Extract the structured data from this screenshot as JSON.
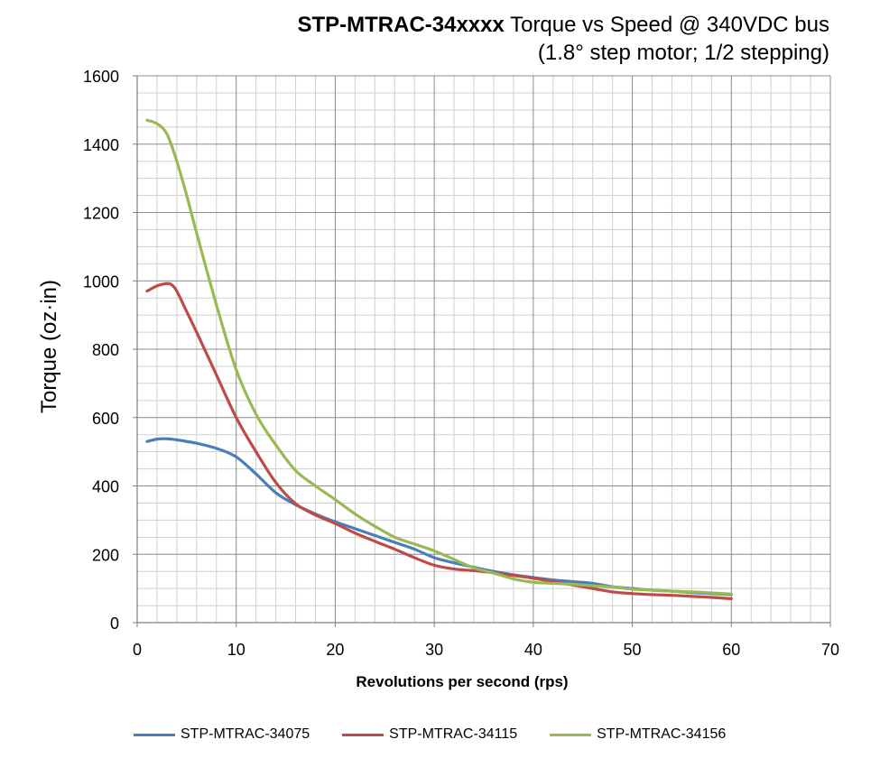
{
  "chart_data": {
    "type": "line",
    "title_bold": "STP-MTRAC-34xxxx",
    "title_rest": " Torque vs Speed @ 340VDC bus",
    "subtitle": "(1.8° step motor; 1/2 stepping)",
    "xlabel": "Revolutions per second (rps)",
    "ylabel": "Torque (oz·in)",
    "xlim": [
      0,
      70
    ],
    "ylim": [
      0,
      1600
    ],
    "x_major_ticks": [
      0,
      10,
      20,
      30,
      40,
      50,
      60,
      70
    ],
    "y_major_ticks": [
      0,
      200,
      400,
      600,
      800,
      1000,
      1200,
      1400,
      1600
    ],
    "x_minor_step": 2,
    "y_minor_step": 50,
    "grid": true,
    "legend_position": "bottom",
    "series": [
      {
        "name": "STP-MTRAC-34075",
        "color": "#4a7ebb",
        "x": [
          1,
          2,
          3,
          4,
          5,
          6,
          8,
          10,
          12,
          14,
          16,
          18,
          20,
          22,
          24,
          26,
          28,
          30,
          32,
          34,
          36,
          38,
          40,
          42,
          44,
          46,
          48,
          50,
          52,
          54,
          56,
          58,
          60
        ],
        "y": [
          530,
          537,
          538,
          535,
          530,
          525,
          510,
          485,
          435,
          380,
          345,
          318,
          295,
          275,
          255,
          235,
          215,
          190,
          175,
          162,
          150,
          140,
          132,
          125,
          120,
          115,
          105,
          100,
          95,
          92,
          88,
          85,
          82
        ]
      },
      {
        "name": "STP-MTRAC-34115",
        "color": "#be4b48",
        "x": [
          1,
          2,
          3,
          3.5,
          4,
          5,
          6,
          8,
          10,
          12,
          14,
          16,
          18,
          20,
          22,
          24,
          26,
          28,
          30,
          32,
          34,
          36,
          38,
          40,
          42,
          44,
          46,
          48,
          50,
          52,
          54,
          56,
          58,
          60
        ],
        "y": [
          970,
          985,
          992,
          988,
          970,
          910,
          850,
          725,
          600,
          500,
          410,
          348,
          315,
          290,
          262,
          238,
          215,
          190,
          168,
          157,
          152,
          146,
          138,
          130,
          120,
          110,
          100,
          90,
          85,
          82,
          80,
          77,
          74,
          70
        ]
      },
      {
        "name": "STP-MTRAC-34156",
        "color": "#98b954",
        "x": [
          1,
          2,
          3,
          4,
          5,
          6,
          8,
          10,
          12,
          14,
          16,
          18,
          20,
          22,
          24,
          26,
          28,
          30,
          32,
          34,
          36,
          38,
          40,
          42,
          44,
          46,
          48,
          50,
          52,
          54,
          56,
          58,
          60
        ],
        "y": [
          1470,
          1460,
          1430,
          1350,
          1250,
          1140,
          930,
          740,
          610,
          520,
          445,
          400,
          360,
          318,
          282,
          250,
          230,
          210,
          185,
          160,
          145,
          128,
          118,
          115,
          112,
          108,
          104,
          98,
          95,
          92,
          90,
          87,
          84
        ]
      }
    ]
  }
}
